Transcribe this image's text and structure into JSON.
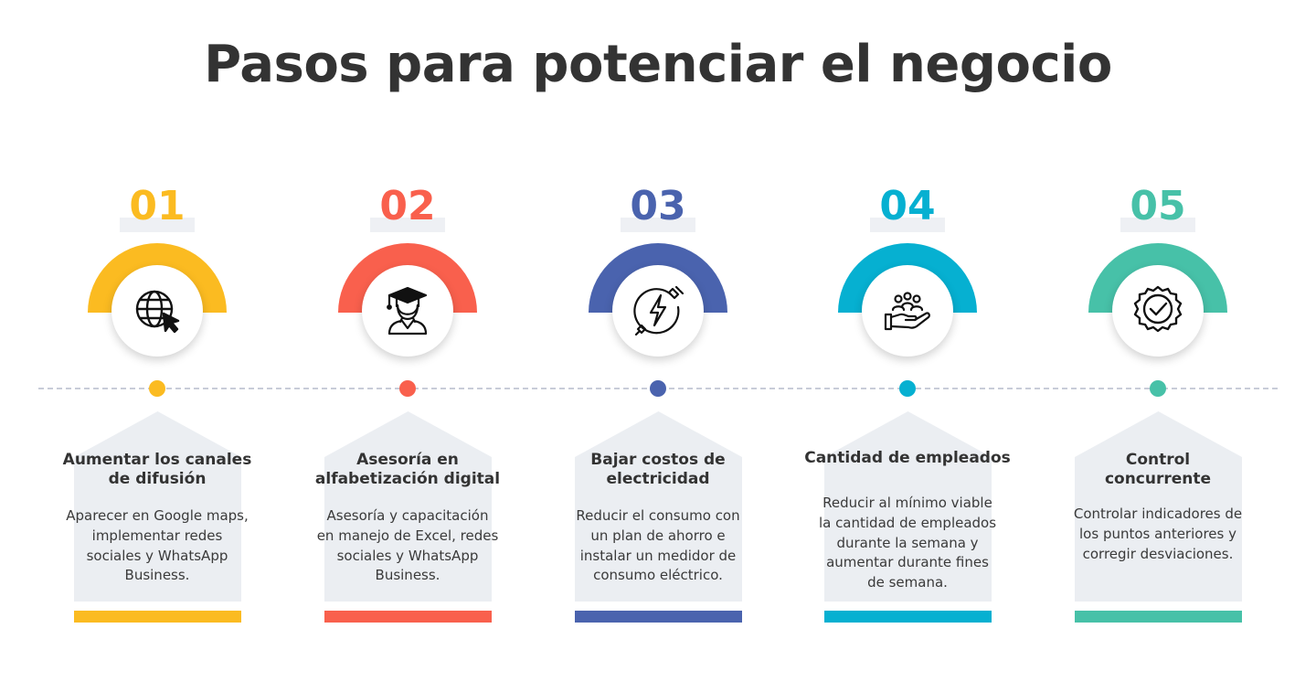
{
  "title": "Pasos para potenciar el negocio",
  "steps": [
    {
      "number": "01",
      "color": "#fbbb21",
      "icon": "globe-cursor-icon",
      "title": "Aumentar los canales de difusión",
      "text": "Aparecer en Google maps, implementar redes sociales y WhatsApp Business."
    },
    {
      "number": "02",
      "color": "#f9604d",
      "icon": "graduate-icon",
      "title": "Asesoría en alfabetización digital",
      "text": "Asesoría y capacitación en manejo de Excel, redes sociales y WhatsApp Business."
    },
    {
      "number": "03",
      "color": "#4a63ae",
      "icon": "electricity-plug-icon",
      "title": "Bajar costos de electricidad",
      "text": "Reducir el consumo con un plan de ahorro e instalar un medidor de consumo eléctrico."
    },
    {
      "number": "04",
      "color": "#06b0d1",
      "icon": "hand-people-icon",
      "title": "Cantidad de empleados",
      "text": "Reducir al mínimo viable la cantidad de empleados durante la semana y aumentar durante fines de semana."
    },
    {
      "number": "05",
      "color": "#47c1a8",
      "icon": "check-badge-icon",
      "title": "Control concurrente",
      "text": "Controlar indicadores de los puntos anteriores y corregir desviaciones."
    }
  ]
}
